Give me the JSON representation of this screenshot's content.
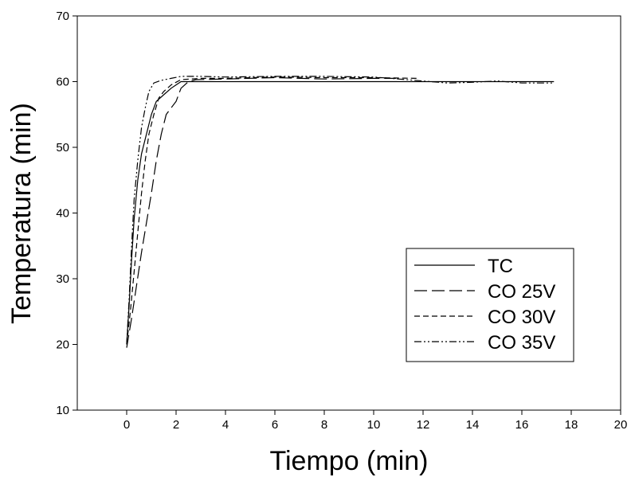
{
  "chart_data": {
    "type": "line",
    "xlabel": "Tiempo (min)",
    "ylabel": "Temperatura (min)",
    "xlim": [
      -2,
      20
    ],
    "ylim": [
      10,
      70
    ],
    "xticks": [
      0,
      2,
      4,
      6,
      8,
      10,
      12,
      14,
      16,
      18,
      20
    ],
    "yticks": [
      10,
      20,
      30,
      40,
      50,
      60,
      70
    ],
    "grid": false,
    "legend_position": "right-middle",
    "series": [
      {
        "name": "TC",
        "dash": "solid",
        "x": [
          0,
          0.1,
          0.2,
          0.3,
          0.45,
          0.6,
          0.8,
          1.0,
          1.2,
          1.5,
          1.8,
          2.0,
          2.2,
          2.5,
          4,
          6,
          8,
          10,
          12,
          14,
          16,
          17.3
        ],
        "y": [
          20,
          26,
          33,
          39,
          45,
          49,
          52,
          55,
          57,
          58,
          59,
          59.5,
          60,
          60,
          60,
          60,
          60,
          60,
          60,
          60,
          60,
          60
        ]
      },
      {
        "name": "CO 25V",
        "dash": "long-dash",
        "x": [
          0,
          0.2,
          0.4,
          0.6,
          0.8,
          1.0,
          1.2,
          1.4,
          1.6,
          1.8,
          2.0,
          2.2,
          2.5,
          2.8,
          4,
          6,
          8,
          10,
          10.9
        ],
        "y": [
          19.5,
          24,
          29,
          34,
          38.5,
          43,
          48,
          52,
          55,
          56,
          57,
          59,
          60,
          60.3,
          60.4,
          60.6,
          60.4,
          60.5,
          60.5
        ]
      },
      {
        "name": "CO 30V",
        "dash": "short-dash",
        "x": [
          0,
          0.15,
          0.3,
          0.45,
          0.6,
          0.75,
          0.9,
          1.1,
          1.3,
          1.5,
          1.8,
          2.2,
          3,
          4,
          6,
          8,
          10,
          11.8
        ],
        "y": [
          20,
          25,
          31,
          37,
          43,
          48,
          52,
          55,
          57.5,
          58.5,
          59.5,
          60.3,
          60.5,
          60.5,
          60.7,
          60.6,
          60.6,
          60.5
        ]
      },
      {
        "name": "CO 35V",
        "dash": "dash-dot-dot",
        "x": [
          0,
          0.1,
          0.2,
          0.3,
          0.45,
          0.6,
          0.75,
          0.9,
          1.1,
          1.4,
          1.8,
          2.2,
          3,
          4,
          6,
          8,
          10,
          13,
          14,
          15,
          16,
          17.3
        ],
        "y": [
          20,
          27,
          35,
          42,
          48,
          53,
          56,
          58.5,
          59.8,
          60.2,
          60.5,
          60.8,
          60.8,
          60.7,
          60.8,
          60.8,
          60.7,
          59.8,
          59.9,
          60.1,
          59.8,
          59.8
        ]
      }
    ]
  }
}
